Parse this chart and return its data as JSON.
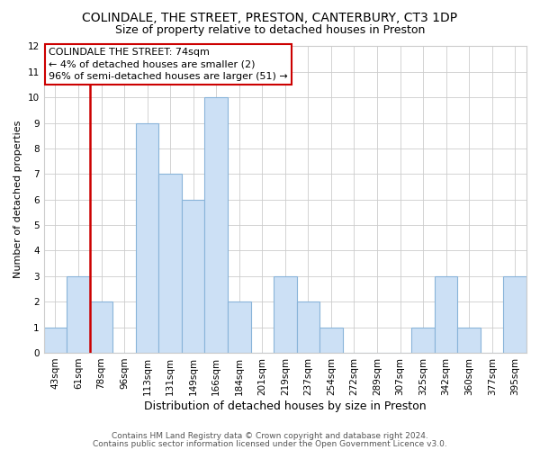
{
  "title": "COLINDALE, THE STREET, PRESTON, CANTERBURY, CT3 1DP",
  "subtitle": "Size of property relative to detached houses in Preston",
  "xlabel": "Distribution of detached houses by size in Preston",
  "ylabel": "Number of detached properties",
  "bins": [
    "43sqm",
    "61sqm",
    "78sqm",
    "96sqm",
    "113sqm",
    "131sqm",
    "149sqm",
    "166sqm",
    "184sqm",
    "201sqm",
    "219sqm",
    "237sqm",
    "254sqm",
    "272sqm",
    "289sqm",
    "307sqm",
    "325sqm",
    "342sqm",
    "360sqm",
    "377sqm",
    "395sqm"
  ],
  "values": [
    1,
    3,
    2,
    0,
    9,
    7,
    6,
    10,
    2,
    0,
    3,
    2,
    1,
    0,
    0,
    0,
    1,
    3,
    1,
    0,
    3
  ],
  "bar_color": "#cce0f5",
  "bar_edge_color": "#89b4d9",
  "subject_line_color": "#cc0000",
  "annotation_text": "COLINDALE THE STREET: 74sqm\n← 4% of detached houses are smaller (2)\n96% of semi-detached houses are larger (51) →",
  "annotation_box_facecolor": "#ffffff",
  "annotation_box_edgecolor": "#cc0000",
  "ylim": [
    0,
    12
  ],
  "yticks": [
    0,
    1,
    2,
    3,
    4,
    5,
    6,
    7,
    8,
    9,
    10,
    11,
    12
  ],
  "footer1": "Contains HM Land Registry data © Crown copyright and database right 2024.",
  "footer2": "Contains public sector information licensed under the Open Government Licence v3.0.",
  "title_fontsize": 10,
  "subtitle_fontsize": 9,
  "xlabel_fontsize": 9,
  "ylabel_fontsize": 8,
  "tick_fontsize": 7.5,
  "annotation_fontsize": 8,
  "footer_fontsize": 6.5
}
